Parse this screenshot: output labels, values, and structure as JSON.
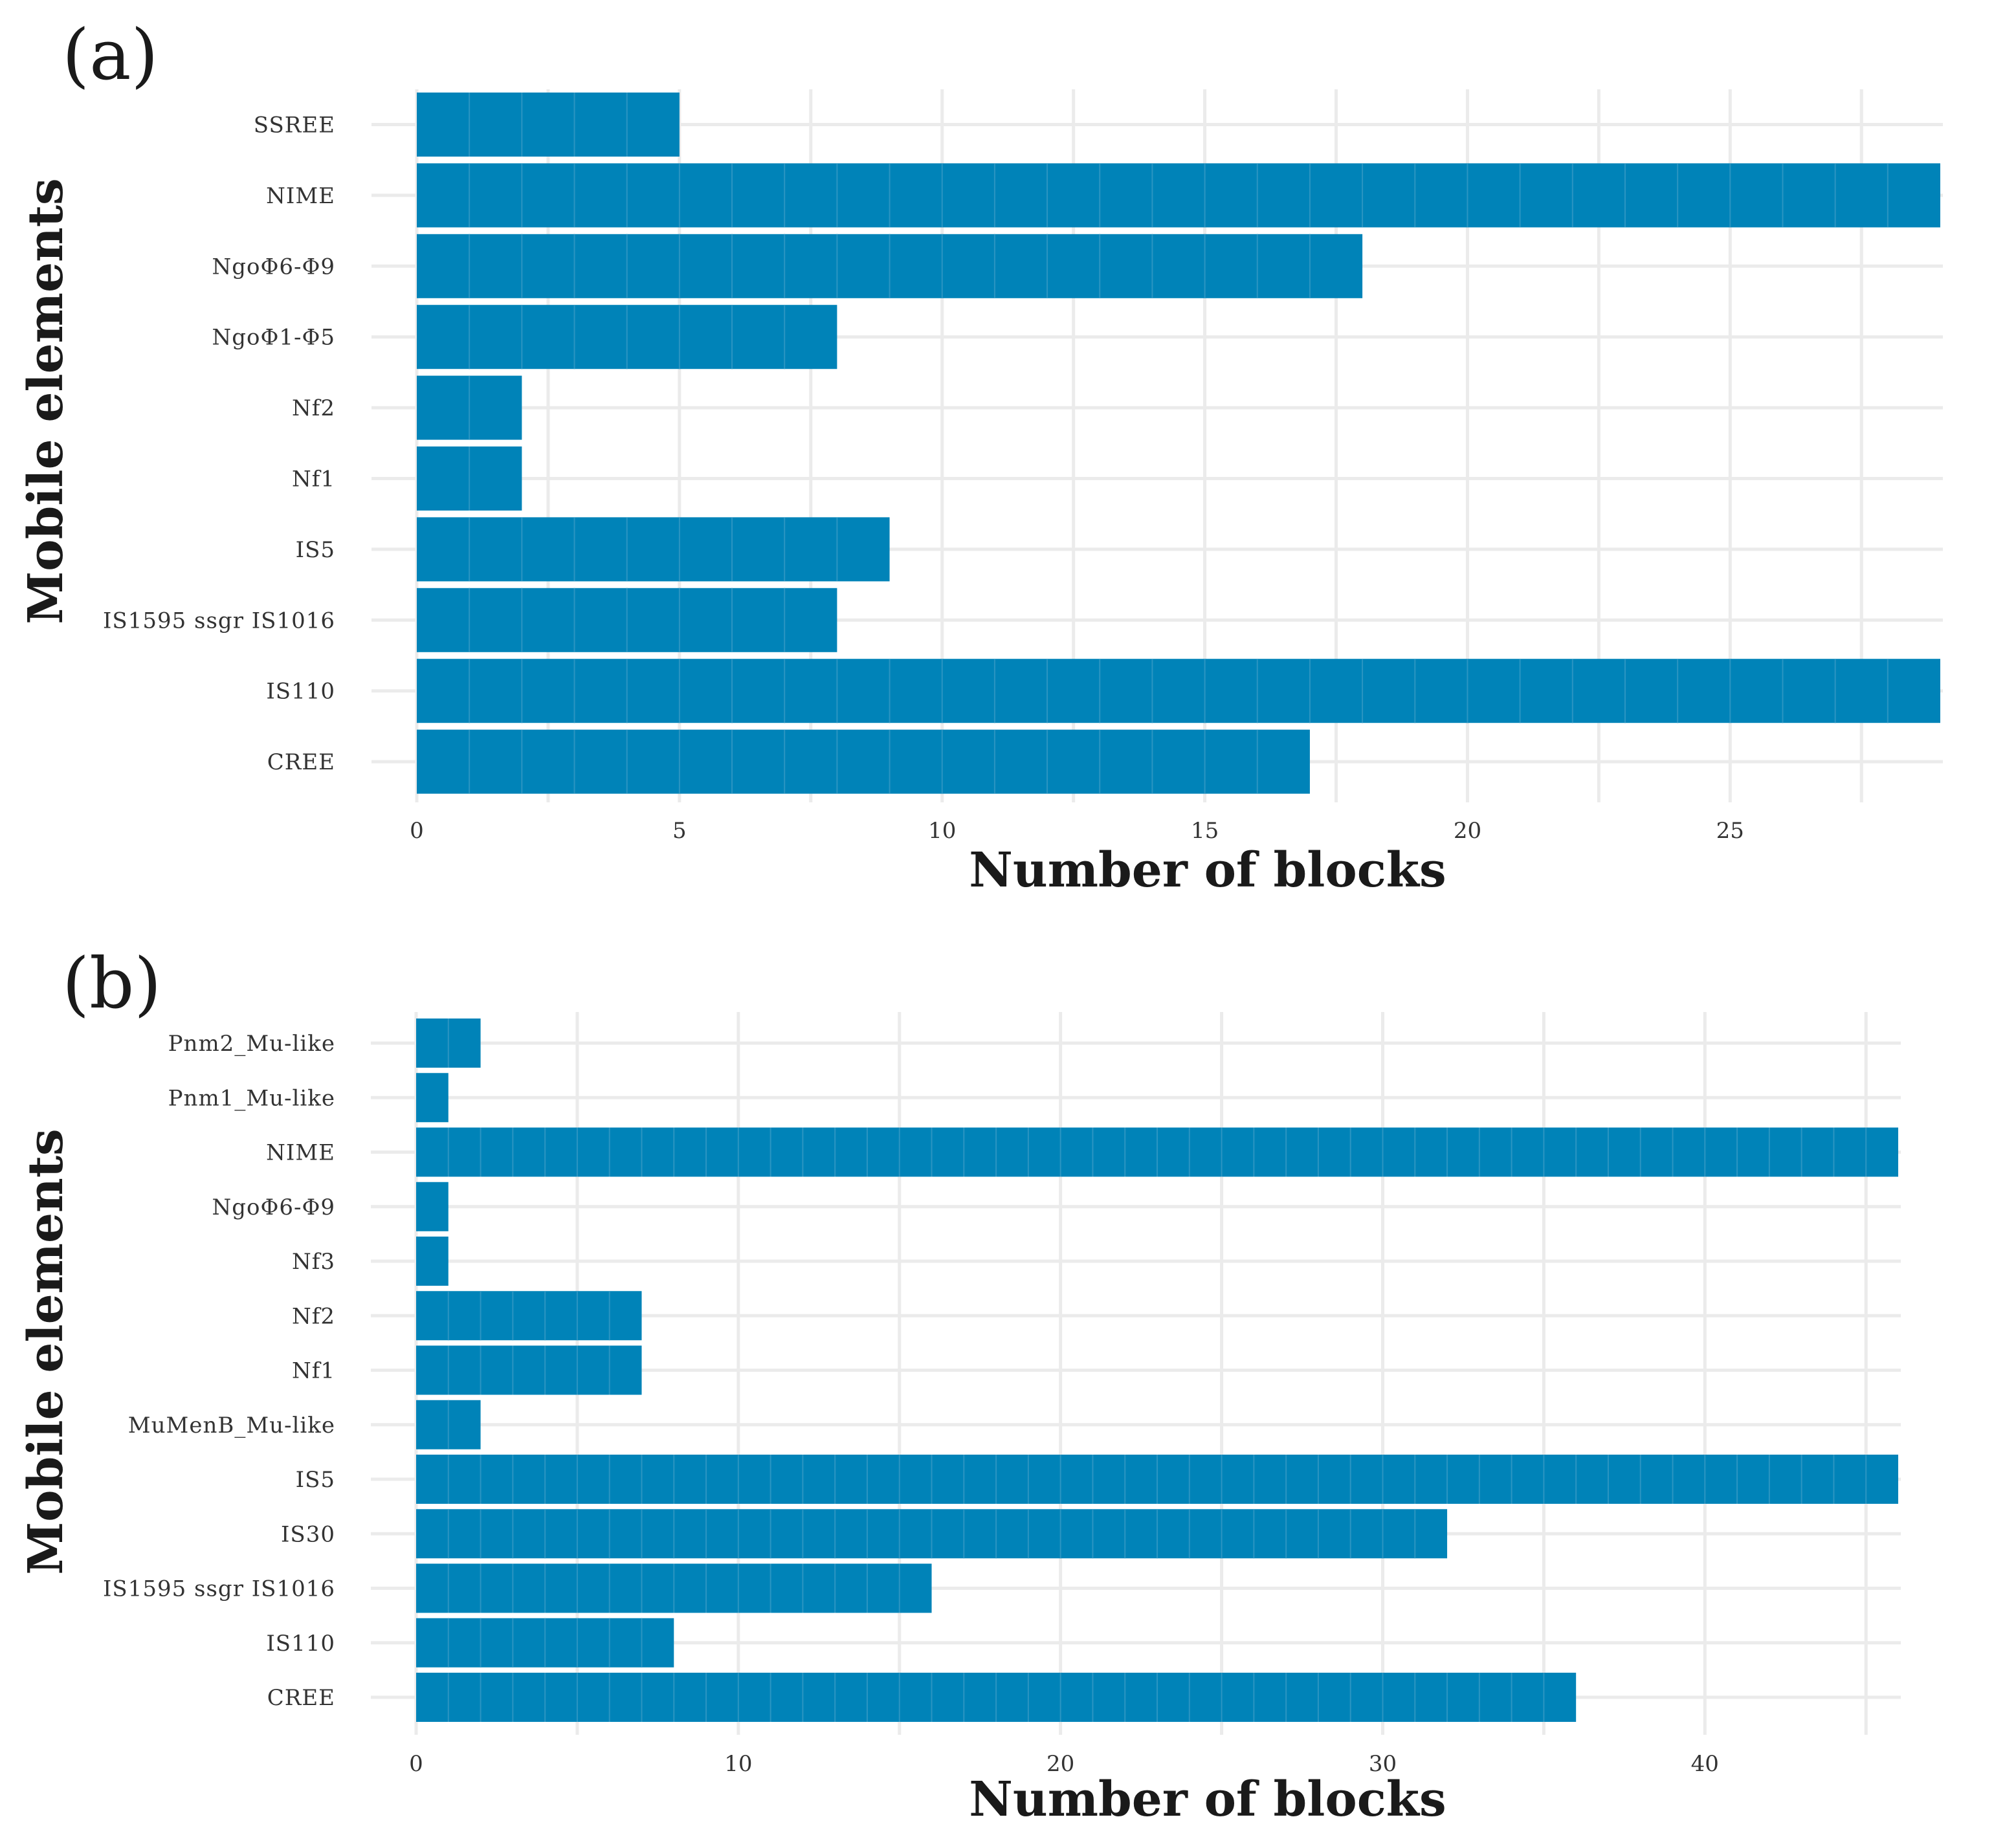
{
  "colors": {
    "bar": "#0083b8",
    "block_line": "#2b95c2",
    "grid": "#ebebeb",
    "text": "#333333"
  },
  "chart_data": [
    {
      "panel_label": "(a)",
      "type": "bar",
      "orientation": "horizontal",
      "categories": [
        "SSREE",
        "NIME",
        "NgoΦ6-Φ9",
        "NgoΦ1-Φ5",
        "Nf2",
        "Nf1",
        "IS5",
        "IS1595 ssgr IS1016",
        "IS110",
        "CREE"
      ],
      "values": [
        5,
        29,
        18,
        8,
        2,
        2,
        9,
        8,
        29,
        17
      ],
      "xlabel": "Number of blocks",
      "ylabel": "Mobile elements",
      "xlim": [
        0,
        29
      ],
      "xticks": [
        0,
        5,
        10,
        15,
        20,
        25
      ],
      "grid": true
    },
    {
      "panel_label": "(b)",
      "type": "bar",
      "orientation": "horizontal",
      "categories": [
        "Pnm2_Mu-like",
        "Pnm1_Mu-like",
        "NIME",
        "NgoΦ6-Φ9",
        "Nf3",
        "Nf2",
        "Nf1",
        "MuMenB_Mu-like",
        "IS5",
        "IS30",
        "IS1595 ssgr IS1016",
        "IS110",
        "CREE"
      ],
      "values": [
        2,
        1,
        46,
        1,
        1,
        7,
        7,
        2,
        46,
        32,
        16,
        8,
        36
      ],
      "xlabel": "Number of blocks",
      "ylabel": "Mobile elements",
      "xlim": [
        0,
        46
      ],
      "xticks": [
        0,
        10,
        20,
        30,
        40
      ],
      "grid": true
    }
  ]
}
